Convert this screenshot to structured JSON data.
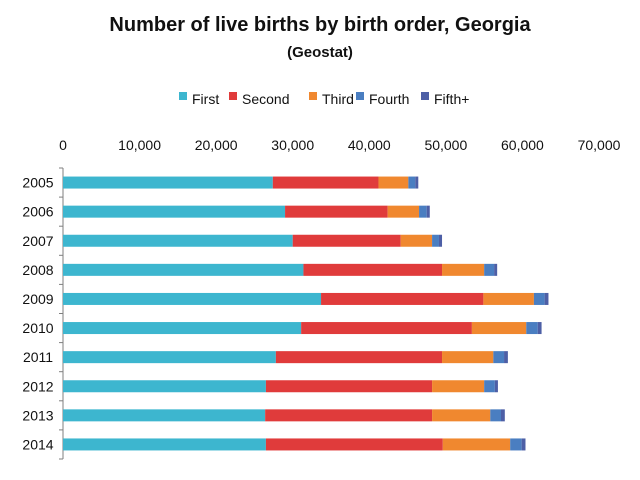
{
  "chart_data": {
    "type": "bar",
    "orientation": "horizontal",
    "stacked": true,
    "title": "Number of live births by birth order, Georgia",
    "subtitle": "(Geostat)",
    "categories": [
      "2005",
      "2006",
      "2007",
      "2008",
      "2009",
      "2010",
      "2011",
      "2012",
      "2013",
      "2014"
    ],
    "series": [
      {
        "name": "First",
        "color": "#3db6cf",
        "values": [
          27400,
          29000,
          30000,
          31400,
          33700,
          31100,
          27800,
          26500,
          26400,
          26500
        ]
      },
      {
        "name": "Second",
        "color": "#e03b3b",
        "values": [
          13800,
          13400,
          14100,
          18100,
          21200,
          22300,
          21700,
          21700,
          21800,
          23100
        ]
      },
      {
        "name": "Third",
        "color": "#f0882f",
        "values": [
          3900,
          4100,
          4100,
          5500,
          6600,
          7100,
          6700,
          6800,
          7600,
          8800
        ]
      },
      {
        "name": "Fourth",
        "color": "#4a7ec1",
        "values": [
          900,
          1000,
          900,
          1300,
          1400,
          1500,
          1400,
          1400,
          1400,
          1500
        ]
      },
      {
        "name": "Fifth+",
        "color": "#4d5fa6",
        "values": [
          400,
          400,
          400,
          400,
          500,
          500,
          500,
          400,
          500,
          500
        ]
      }
    ],
    "xlim": [
      0,
      70000
    ],
    "xticks": [
      0,
      10000,
      20000,
      30000,
      40000,
      50000,
      60000,
      70000
    ],
    "xtick_labels": [
      "0",
      "10,000",
      "20,000",
      "30,000",
      "40,000",
      "50,000",
      "60,000",
      "70,000"
    ],
    "x_axis_position": "top",
    "legend": "top",
    "grid": false
  }
}
